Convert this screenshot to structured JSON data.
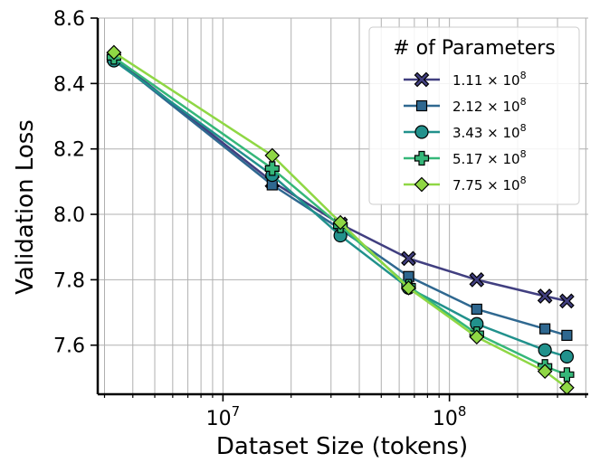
{
  "chart_data": {
    "type": "line",
    "xlabel": "Dataset Size (tokens)",
    "ylabel": "Validation Loss",
    "xscale": "log",
    "xlim": [
      2800000.0,
      410000000.0
    ],
    "ylim": [
      7.45,
      8.6
    ],
    "grid": true,
    "grid_minor_x": true,
    "x_tick_labels": [
      {
        "value": 10000000.0,
        "base": "10",
        "exp": "7"
      },
      {
        "value": 100000000.0,
        "base": "10",
        "exp": "8"
      }
    ],
    "y_ticks": [
      7.6,
      7.8,
      8.0,
      8.2,
      8.4,
      8.6
    ],
    "y_tick_labels": [
      "7.6",
      "7.8",
      "8.0",
      "8.2",
      "8.4",
      "8.6"
    ],
    "legend": {
      "title": "# of Parameters",
      "placement": "top-right"
    },
    "x": [
      3300000.0,
      16500000.0,
      33000000.0,
      66000000.0,
      132000000.0,
      264000000.0,
      330000000.0
    ],
    "series": [
      {
        "name_mant": "1.11",
        "name_exp": "8",
        "color": "#413f80",
        "marker": "X",
        "values": [
          8.48,
          8.1,
          7.97,
          7.865,
          7.8,
          7.75,
          7.735
        ]
      },
      {
        "name_mant": "2.12",
        "name_exp": "8",
        "color": "#2f6890",
        "marker": "square",
        "values": [
          8.475,
          8.09,
          7.955,
          7.81,
          7.71,
          7.65,
          7.63
        ]
      },
      {
        "name_mant": "3.43",
        "name_exp": "8",
        "color": "#21918c",
        "marker": "circle",
        "values": [
          8.47,
          8.12,
          7.935,
          7.775,
          7.665,
          7.585,
          7.565
        ]
      },
      {
        "name_mant": "5.17",
        "name_exp": "8",
        "color": "#35b779",
        "marker": "plus",
        "values": [
          8.48,
          8.14,
          7.965,
          7.78,
          7.635,
          7.535,
          7.51
        ]
      },
      {
        "name_mant": "7.75",
        "name_exp": "8",
        "color": "#8fd744",
        "marker": "diamond",
        "values": [
          8.495,
          8.18,
          7.975,
          7.775,
          7.625,
          7.52,
          7.47
        ]
      }
    ]
  }
}
